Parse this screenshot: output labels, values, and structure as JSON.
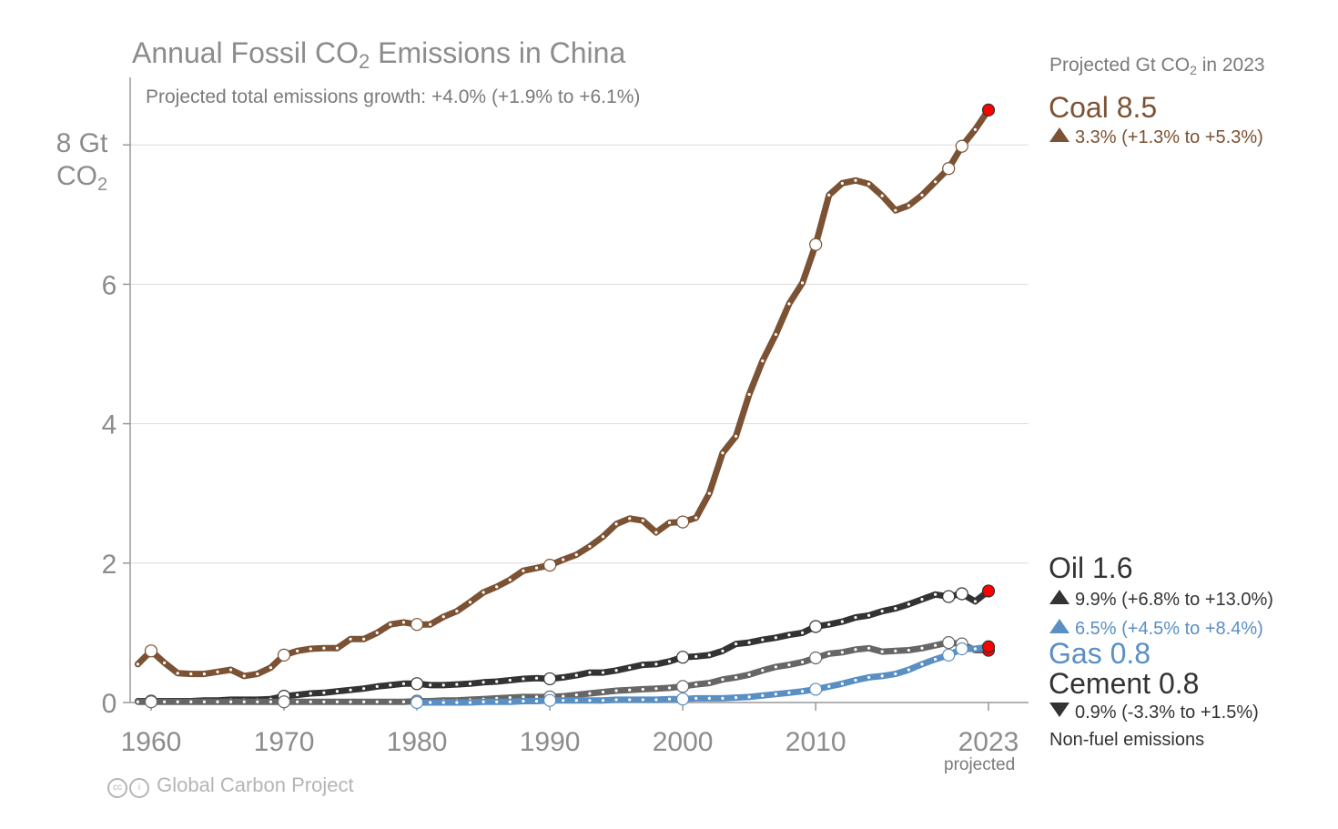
{
  "title": {
    "prefix": "Annual Fossil CO",
    "sub": "2",
    "suffix": " Emissions in China"
  },
  "subtitle": "Projected total emissions growth: +4.0% (+1.9% to +6.1%)",
  "ylabel": {
    "line1": "8 Gt",
    "line2": "CO",
    "sub": "2"
  },
  "legend_header": {
    "prefix": "Projected Gt CO",
    "sub": "2",
    "suffix": " in 2023"
  },
  "legend": {
    "coal": {
      "name": "Coal 8.5",
      "growth": "3.3% (+1.3% to +5.3%)",
      "direction": "up"
    },
    "oil": {
      "name": "Oil 1.6",
      "growth": "9.9% (+6.8% to +13.0%)",
      "direction": "up"
    },
    "gas": {
      "name": "Gas 0.8",
      "growth": "6.5% (+4.5% to +8.4%)",
      "direction": "up"
    },
    "cement": {
      "name": "Cement 0.8",
      "growth": "0.9% (-3.3% to +1.5%)",
      "direction": "down"
    },
    "nonfuel_note": "Non-fuel emissions"
  },
  "credit": "Global Carbon Project",
  "cc_icon": "cc-by-icon",
  "projected_label": "projected",
  "colors": {
    "coal": "#7b5233",
    "oil": "#333333",
    "gas": "#5a8fc3",
    "cement": "#666666",
    "projection_marker": "#ff0000",
    "axis_text": "#8c8c8c",
    "grid": "#dddddd"
  },
  "chart_data": {
    "type": "line",
    "title": "Annual Fossil CO2 Emissions in China",
    "ylabel": "Gt CO2",
    "xlim": [
      1959,
      2025
    ],
    "ylim": [
      0,
      9
    ],
    "yticks": [
      0,
      2,
      4,
      6,
      8
    ],
    "xticks": [
      "1960",
      "1970",
      "1980",
      "1990",
      "2000",
      "2010",
      "2023"
    ],
    "projection_year": 2023,
    "grid": true,
    "series": [
      {
        "name": "Coal",
        "key": "coal",
        "x": [
          1959,
          1960,
          1961,
          1962,
          1963,
          1964,
          1965,
          1966,
          1967,
          1968,
          1969,
          1970,
          1971,
          1972,
          1973,
          1974,
          1975,
          1976,
          1977,
          1978,
          1979,
          1980,
          1981,
          1982,
          1983,
          1984,
          1985,
          1986,
          1987,
          1988,
          1989,
          1990,
          1991,
          1992,
          1993,
          1994,
          1995,
          1996,
          1997,
          1998,
          1999,
          2000,
          2001,
          2002,
          2003,
          2004,
          2005,
          2006,
          2007,
          2008,
          2009,
          2010,
          2011,
          2012,
          2013,
          2014,
          2015,
          2016,
          2017,
          2018,
          2019,
          2020,
          2021,
          2022,
          2023
        ],
        "y": [
          0.55,
          0.74,
          0.57,
          0.42,
          0.41,
          0.41,
          0.44,
          0.47,
          0.38,
          0.41,
          0.5,
          0.68,
          0.74,
          0.77,
          0.78,
          0.78,
          0.91,
          0.91,
          1.0,
          1.12,
          1.15,
          1.12,
          1.12,
          1.23,
          1.31,
          1.44,
          1.58,
          1.66,
          1.76,
          1.89,
          1.93,
          1.97,
          2.05,
          2.12,
          2.24,
          2.38,
          2.56,
          2.64,
          2.61,
          2.44,
          2.58,
          2.59,
          2.65,
          3.0,
          3.58,
          3.82,
          4.42,
          4.9,
          5.28,
          5.72,
          6.02,
          6.57,
          7.28,
          7.45,
          7.49,
          7.44,
          7.27,
          7.06,
          7.13,
          7.28,
          7.47,
          7.66,
          7.98,
          8.22,
          8.5
        ]
      },
      {
        "name": "Oil",
        "key": "oil",
        "x": [
          1959,
          1960,
          1961,
          1962,
          1963,
          1964,
          1965,
          1966,
          1967,
          1968,
          1969,
          1970,
          1971,
          1972,
          1973,
          1974,
          1975,
          1976,
          1977,
          1978,
          1979,
          1980,
          1981,
          1982,
          1983,
          1984,
          1985,
          1986,
          1987,
          1988,
          1989,
          1990,
          1991,
          1992,
          1993,
          1994,
          1995,
          1996,
          1997,
          1998,
          1999,
          2000,
          2001,
          2002,
          2003,
          2004,
          2005,
          2006,
          2007,
          2008,
          2009,
          2010,
          2011,
          2012,
          2013,
          2014,
          2015,
          2016,
          2017,
          2018,
          2019,
          2020,
          2021,
          2022,
          2023
        ],
        "y": [
          0.02,
          0.02,
          0.02,
          0.02,
          0.02,
          0.03,
          0.03,
          0.04,
          0.04,
          0.04,
          0.05,
          0.09,
          0.11,
          0.13,
          0.14,
          0.16,
          0.18,
          0.2,
          0.23,
          0.25,
          0.27,
          0.27,
          0.25,
          0.25,
          0.26,
          0.27,
          0.29,
          0.3,
          0.32,
          0.34,
          0.35,
          0.34,
          0.36,
          0.39,
          0.43,
          0.43,
          0.46,
          0.5,
          0.54,
          0.55,
          0.59,
          0.65,
          0.66,
          0.68,
          0.74,
          0.84,
          0.86,
          0.9,
          0.93,
          0.97,
          1.0,
          1.09,
          1.12,
          1.16,
          1.22,
          1.25,
          1.31,
          1.35,
          1.41,
          1.48,
          1.55,
          1.52,
          1.56,
          1.45,
          1.6
        ]
      },
      {
        "name": "Cement",
        "key": "cement",
        "x": [
          1959,
          1960,
          1961,
          1962,
          1963,
          1964,
          1965,
          1966,
          1967,
          1968,
          1969,
          1970,
          1971,
          1972,
          1973,
          1974,
          1975,
          1976,
          1977,
          1978,
          1979,
          1980,
          1981,
          1982,
          1983,
          1984,
          1985,
          1986,
          1987,
          1988,
          1989,
          1990,
          1991,
          1992,
          1993,
          1994,
          1995,
          1996,
          1997,
          1998,
          1999,
          2000,
          2001,
          2002,
          2003,
          2004,
          2005,
          2006,
          2007,
          2008,
          2009,
          2010,
          2011,
          2012,
          2013,
          2014,
          2015,
          2016,
          2017,
          2018,
          2019,
          2020,
          2021,
          2022,
          2023
        ],
        "y": [
          0.01,
          0.01,
          0.01,
          0.01,
          0.01,
          0.01,
          0.01,
          0.01,
          0.01,
          0.01,
          0.01,
          0.01,
          0.01,
          0.01,
          0.01,
          0.01,
          0.01,
          0.01,
          0.01,
          0.01,
          0.01,
          0.02,
          0.02,
          0.03,
          0.03,
          0.04,
          0.05,
          0.06,
          0.07,
          0.08,
          0.08,
          0.08,
          0.09,
          0.11,
          0.13,
          0.15,
          0.17,
          0.18,
          0.19,
          0.2,
          0.21,
          0.23,
          0.26,
          0.28,
          0.33,
          0.36,
          0.4,
          0.46,
          0.51,
          0.54,
          0.58,
          0.64,
          0.7,
          0.72,
          0.76,
          0.78,
          0.73,
          0.74,
          0.75,
          0.78,
          0.82,
          0.86,
          0.84,
          0.75,
          0.75
        ]
      },
      {
        "name": "Gas",
        "key": "gas",
        "x": [
          1980,
          1981,
          1982,
          1983,
          1984,
          1985,
          1986,
          1987,
          1988,
          1989,
          1990,
          1991,
          1992,
          1993,
          1994,
          1995,
          1996,
          1997,
          1998,
          1999,
          2000,
          2001,
          2002,
          2003,
          2004,
          2005,
          2006,
          2007,
          2008,
          2009,
          2010,
          2011,
          2012,
          2013,
          2014,
          2015,
          2016,
          2017,
          2018,
          2019,
          2020,
          2021,
          2022,
          2023
        ],
        "y": [
          0.0,
          0.0,
          0.0,
          0.0,
          0.0,
          0.01,
          0.01,
          0.01,
          0.02,
          0.02,
          0.03,
          0.03,
          0.03,
          0.03,
          0.03,
          0.04,
          0.04,
          0.04,
          0.04,
          0.05,
          0.05,
          0.06,
          0.06,
          0.06,
          0.07,
          0.08,
          0.1,
          0.12,
          0.14,
          0.16,
          0.19,
          0.23,
          0.27,
          0.32,
          0.36,
          0.38,
          0.41,
          0.47,
          0.55,
          0.62,
          0.68,
          0.77,
          0.77,
          0.8
        ]
      }
    ]
  }
}
